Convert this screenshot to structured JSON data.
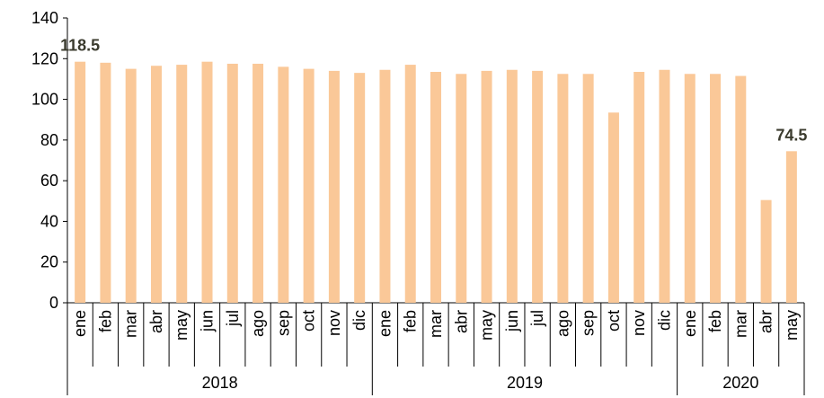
{
  "chart_data": {
    "type": "bar",
    "color": "#fac898",
    "ylim": [
      0,
      140
    ],
    "yticks": [
      0,
      20,
      40,
      60,
      80,
      100,
      120,
      140
    ],
    "groups": [
      {
        "name": "2018",
        "categories": [
          "ene",
          "feb",
          "mar",
          "abr",
          "may",
          "jun",
          "jul",
          "ago",
          "sep",
          "oct",
          "nov",
          "dic"
        ],
        "values": [
          118.5,
          118,
          115,
          116.5,
          117,
          118.5,
          117.5,
          117.5,
          116,
          115,
          114,
          113
        ],
        "value_labels": [
          "118.5",
          null,
          null,
          null,
          null,
          null,
          null,
          null,
          null,
          null,
          null,
          null
        ]
      },
      {
        "name": "2019",
        "categories": [
          "ene",
          "feb",
          "mar",
          "abr",
          "may",
          "jun",
          "jul",
          "ago",
          "sep",
          "oct",
          "nov",
          "dic"
        ],
        "values": [
          114.5,
          117,
          113.5,
          112.5,
          114,
          114.5,
          114,
          112.5,
          112.5,
          93.5,
          113.5,
          114.5
        ],
        "value_labels": [
          null,
          null,
          null,
          null,
          null,
          null,
          null,
          null,
          null,
          null,
          null,
          null
        ]
      },
      {
        "name": "2020",
        "categories": [
          "ene",
          "feb",
          "mar",
          "abr",
          "may"
        ],
        "values": [
          112.5,
          112.5,
          111.5,
          50.5,
          74.5
        ],
        "value_labels": [
          null,
          null,
          null,
          null,
          "74.5"
        ]
      }
    ]
  }
}
